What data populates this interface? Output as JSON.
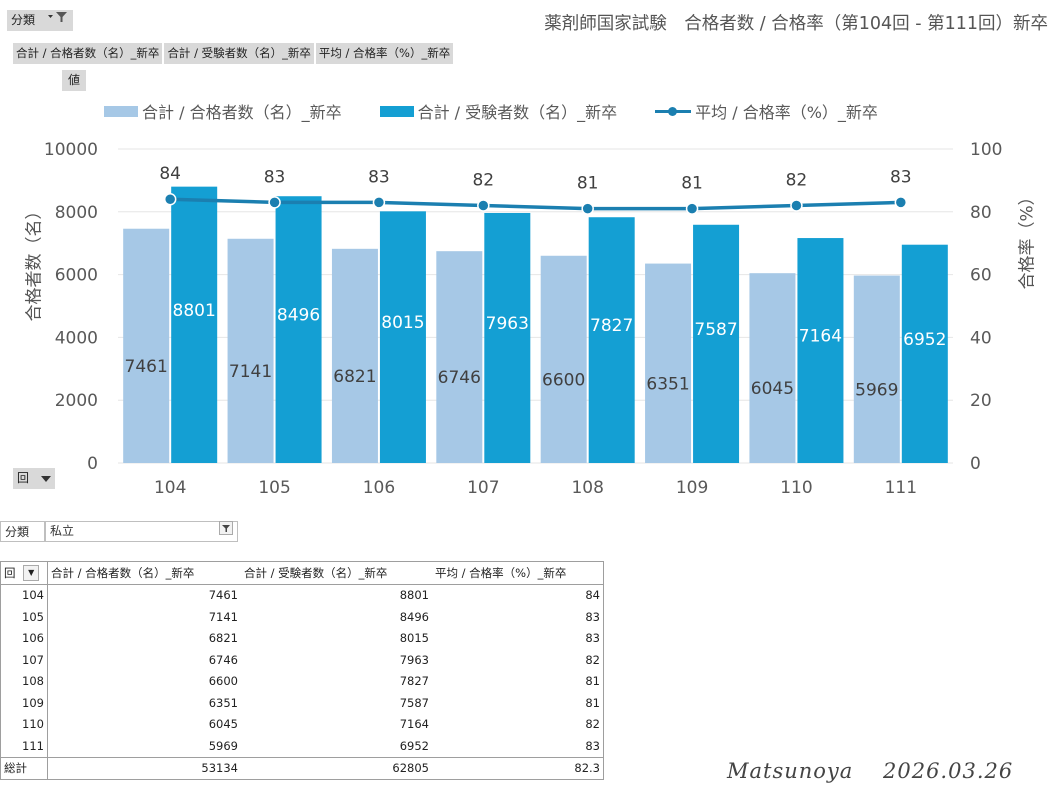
{
  "filter_pill": {
    "label": "分類",
    "icon": "filter-dropdown-icon"
  },
  "value_pill": {
    "label": "値"
  },
  "axis_pill": {
    "label": "回",
    "icon": "dropdown-arrow-icon"
  },
  "field_pills": [
    "合計 / 合格者数（名）_新卒",
    "合計 / 受験者数（名）_新卒",
    "平均 / 合格率（%）_新卒"
  ],
  "colors": {
    "passers": "#a6c8e6",
    "examinees": "#149fd3",
    "rate": "#1b7fb0"
  },
  "chart_data": {
    "type": "bar",
    "title": "薬剤師国家試験　合格者数 / 合格率（第104回 - 第111回）新卒",
    "categories": [
      "104",
      "105",
      "106",
      "107",
      "108",
      "109",
      "110",
      "111"
    ],
    "series": [
      {
        "name": "合計 / 合格者数（名）_新卒",
        "kind": "bar",
        "axis": "left",
        "values": [
          7461,
          7141,
          6821,
          6746,
          6600,
          6351,
          6045,
          5969
        ]
      },
      {
        "name": "合計 / 受験者数（名）_新卒",
        "kind": "bar",
        "axis": "left",
        "values": [
          8801,
          8496,
          8015,
          7963,
          7827,
          7587,
          7164,
          6952
        ]
      },
      {
        "name": "平均 / 合格率（%）_新卒",
        "kind": "line",
        "axis": "right",
        "values": [
          84,
          83,
          83,
          82,
          81,
          81,
          82,
          83
        ],
        "labels": [
          "84",
          "83",
          "83",
          "82",
          "81",
          "81",
          "82",
          "83"
        ]
      }
    ],
    "ylabel": "合格者数（名）",
    "y2label": "合格率（%）",
    "ylim": [
      0,
      10000
    ],
    "y2lim": [
      0,
      100
    ],
    "yticks": [
      "0",
      "2000",
      "4000",
      "6000",
      "8000",
      "10000"
    ],
    "y2ticks": [
      "0",
      "20",
      "40",
      "60",
      "80",
      "100"
    ],
    "grid": true,
    "legend": "top"
  },
  "filter": {
    "label": "分類",
    "value": "私立",
    "icon": "filter-icon"
  },
  "table": {
    "headers": [
      "回",
      "合計 / 合格者数（名）_新卒",
      "合計 / 受験者数（名）_新卒",
      "平均 / 合格率（%）_新卒"
    ],
    "rows": [
      [
        "104",
        "7461",
        "8801",
        "84"
      ],
      [
        "105",
        "7141",
        "8496",
        "83"
      ],
      [
        "106",
        "6821",
        "8015",
        "83"
      ],
      [
        "107",
        "6746",
        "7963",
        "82"
      ],
      [
        "108",
        "6600",
        "7827",
        "81"
      ],
      [
        "109",
        "6351",
        "7587",
        "81"
      ],
      [
        "110",
        "6045",
        "7164",
        "82"
      ],
      [
        "111",
        "5969",
        "6952",
        "83"
      ]
    ],
    "total": [
      "総計",
      "53134",
      "62805",
      "82.3"
    ]
  },
  "signature": "Matsunoya　 2026.03.26"
}
